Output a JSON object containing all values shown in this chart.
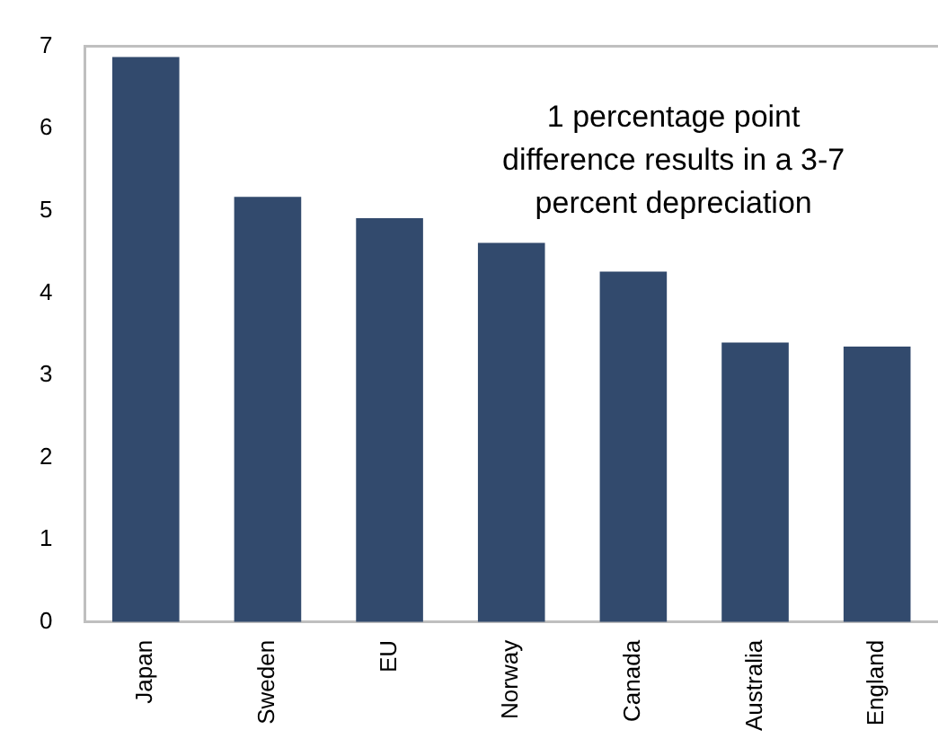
{
  "chart_data": {
    "type": "bar",
    "categories": [
      "Japan",
      "Sweden",
      "EU",
      "Norway",
      "Canada",
      "Australia",
      "England"
    ],
    "values": [
      6.87,
      5.17,
      4.91,
      4.61,
      4.26,
      3.4,
      3.35
    ],
    "color": "#324a6d",
    "ylim": [
      0,
      7
    ],
    "yticks": [
      0,
      1,
      2,
      3,
      4,
      5,
      6,
      7
    ],
    "grid": false,
    "legend": false,
    "annotations": [
      "1 percentage point\ndifference results in a 3-7\npercent depreciation"
    ]
  }
}
